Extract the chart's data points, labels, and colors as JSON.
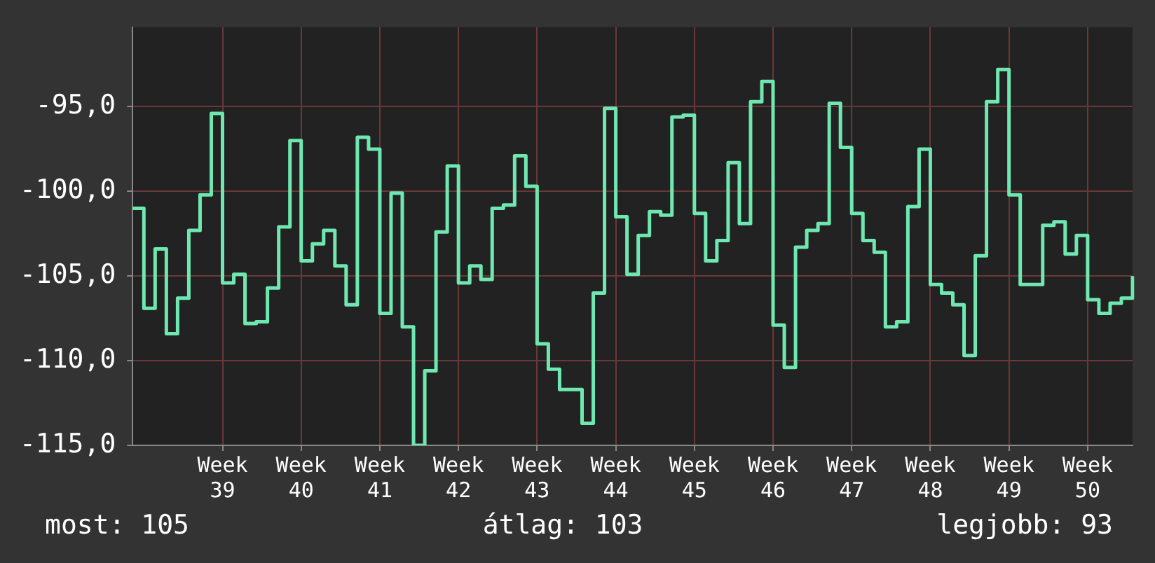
{
  "chart_data": {
    "type": "step",
    "categories": [
      null,
      null,
      null,
      null,
      null,
      null,
      null,
      null,
      "Week 39",
      null,
      null,
      null,
      null,
      null,
      null,
      "Week 40",
      null,
      null,
      null,
      null,
      null,
      null,
      "Week 41",
      null,
      null,
      null,
      null,
      null,
      null,
      "Week 42",
      null,
      null,
      null,
      null,
      null,
      null,
      "Week 43",
      null,
      null,
      null,
      null,
      null,
      null,
      "Week 44",
      null,
      null,
      null,
      null,
      null,
      null,
      "Week 45",
      null,
      null,
      null,
      null,
      null,
      null,
      "Week 46",
      null,
      null,
      null,
      null,
      null,
      null,
      "Week 47",
      null,
      null,
      null,
      null,
      null,
      null,
      "Week 48",
      null,
      null,
      null,
      null,
      null,
      null,
      "Week 49",
      null,
      null,
      null,
      null,
      null,
      null,
      "Week 50",
      null,
      null,
      null,
      null
    ],
    "values": [
      -101.0,
      -106.9,
      -103.4,
      -108.4,
      -106.3,
      -102.3,
      -100.2,
      -95.4,
      -105.4,
      -104.9,
      -107.8,
      -107.7,
      -105.7,
      -102.1,
      -97.0,
      -104.1,
      -103.1,
      -102.3,
      -104.4,
      -106.7,
      -96.8,
      -97.5,
      -107.2,
      -100.1,
      -108.0,
      -115.0,
      -110.6,
      -102.4,
      -98.5,
      -105.4,
      -104.4,
      -105.2,
      -101.0,
      -100.8,
      -97.9,
      -99.7,
      -109.0,
      -110.5,
      -111.7,
      -111.7,
      -113.7,
      -106.0,
      -95.1,
      -101.5,
      -104.9,
      -102.6,
      -101.2,
      -101.4,
      -95.6,
      -95.5,
      -101.3,
      -104.1,
      -102.9,
      -98.3,
      -101.9,
      -94.7,
      -93.5,
      -107.9,
      -110.4,
      -103.3,
      -102.3,
      -101.9,
      -94.8,
      -97.4,
      -101.3,
      -102.9,
      -103.6,
      -108.0,
      -107.7,
      -100.9,
      -97.5,
      -105.5,
      -106.0,
      -106.7,
      -109.7,
      -103.8,
      -94.7,
      -92.8,
      -100.2,
      -105.5,
      -105.5,
      -102.0,
      -101.8,
      -103.7,
      -102.6,
      -106.4,
      -107.2,
      -106.6,
      -106.3,
      -105.0
    ],
    "color": "#6ee8b0",
    "ylim": [
      -115,
      -90.3
    ],
    "yticks": [
      {
        "value": -115,
        "label": "-115,0"
      },
      {
        "value": -110,
        "label": "-110,0"
      },
      {
        "value": -105,
        "label": "-105,0"
      },
      {
        "value": -100,
        "label": "-100,0"
      },
      {
        "value": -95,
        "label": "-95,0"
      }
    ],
    "grid": true,
    "marker": "none",
    "line_style": "solid",
    "annotations": [
      "most: 105",
      "átlag: 103",
      "legjobb: 93"
    ]
  }
}
